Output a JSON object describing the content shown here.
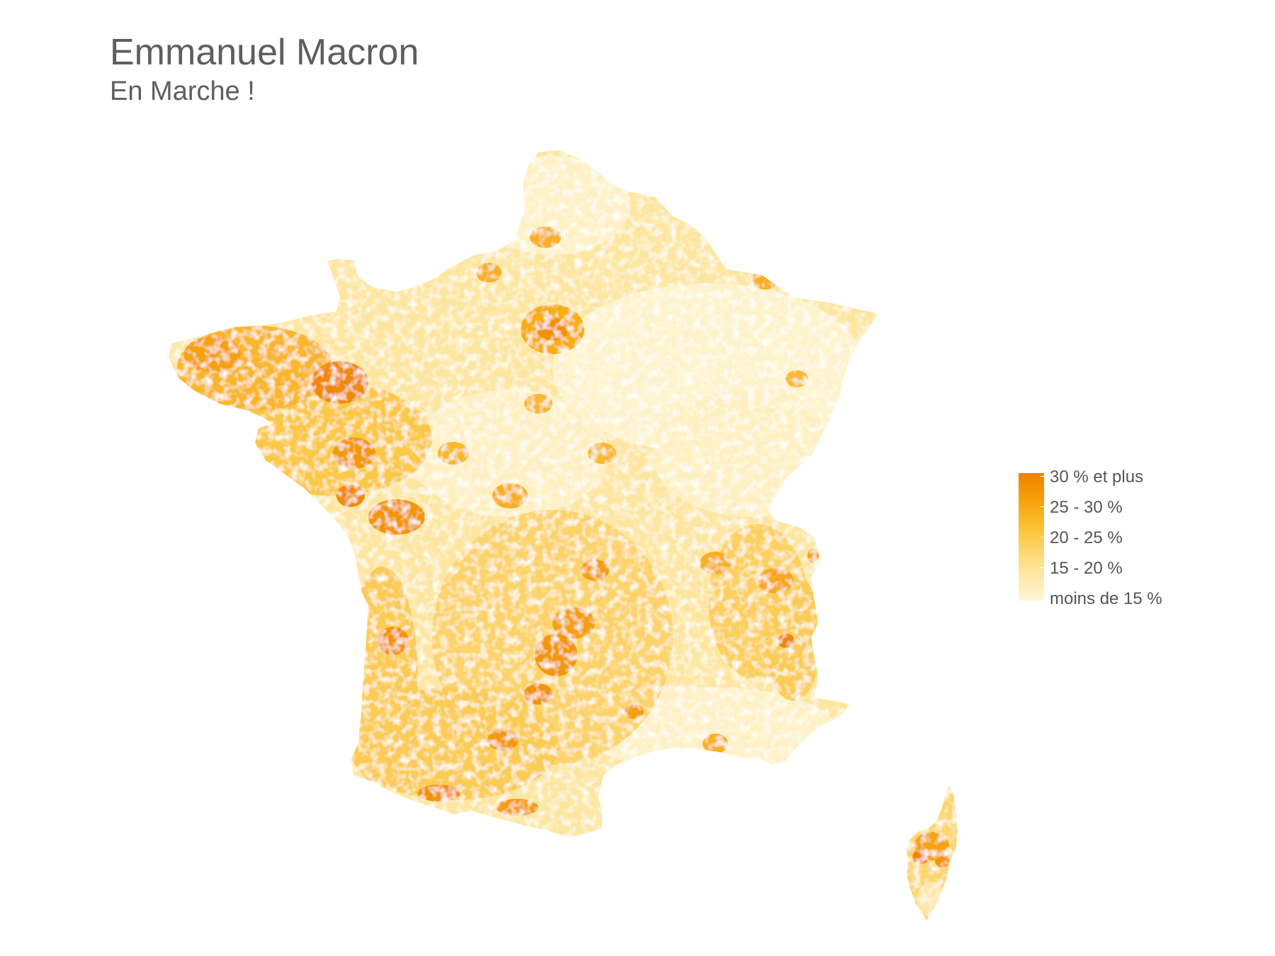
{
  "header": {
    "title": "Emmanuel Macron",
    "subtitle": "En Marche !"
  },
  "legend": {
    "items": [
      {
        "label": "30 % et plus",
        "color": "#ef8200"
      },
      {
        "label": "25 - 30 %",
        "color": "#f8ad0b"
      },
      {
        "label": "20 - 25 %",
        "color": "#fbc83a"
      },
      {
        "label": "15 - 20 %",
        "color": "#fde08a"
      },
      {
        "label": "moins de 15 %",
        "color": "#fff4cc"
      }
    ]
  },
  "map": {
    "regions": [
      "France métropolitaine",
      "Corse"
    ]
  }
}
